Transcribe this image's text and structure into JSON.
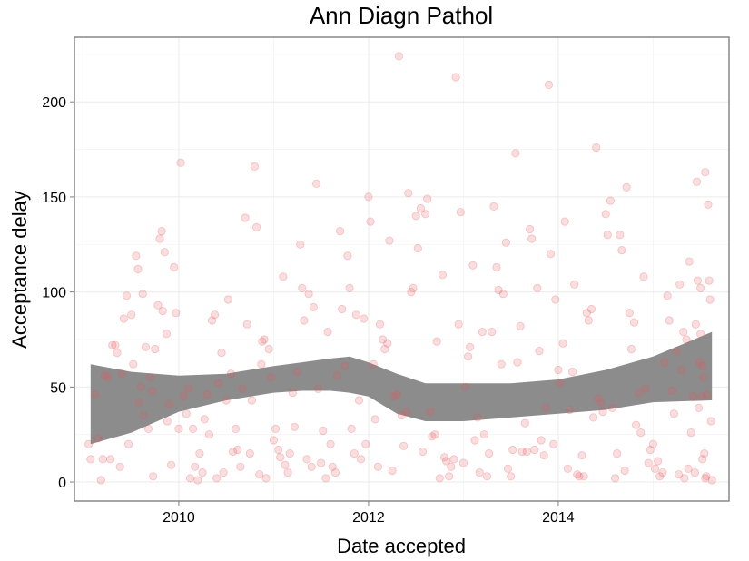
{
  "chart_data": {
    "type": "scatter",
    "title": "Ann Diagn Pathol",
    "xlabel": "Date accepted",
    "ylabel": "Acceptance delay",
    "x_tick_labels": [
      "2010",
      "2012",
      "2014"
    ],
    "y_tick_labels": [
      "0",
      "50",
      "100",
      "150",
      "200"
    ],
    "xlim": [
      2008.9,
      2015.8
    ],
    "ylim": [
      -10,
      234
    ],
    "grid": true,
    "point_color": "#e8555a",
    "band_color": "#8c8c8c",
    "panel_border_color": "#7f7f7f",
    "grid_color": "#ebebeb",
    "points": [
      [
        2009.05,
        20
      ],
      [
        2009.07,
        12
      ],
      [
        2009.12,
        46
      ],
      [
        2009.15,
        23
      ],
      [
        2009.18,
        1
      ],
      [
        2009.2,
        12
      ],
      [
        2009.22,
        56
      ],
      [
        2009.25,
        55
      ],
      [
        2009.28,
        12
      ],
      [
        2009.3,
        72
      ],
      [
        2009.33,
        72
      ],
      [
        2009.35,
        68
      ],
      [
        2009.38,
        8
      ],
      [
        2009.4,
        57
      ],
      [
        2009.42,
        86
      ],
      [
        2009.45,
        98
      ],
      [
        2009.47,
        20
      ],
      [
        2009.5,
        88
      ],
      [
        2009.52,
        62
      ],
      [
        2009.55,
        119
      ],
      [
        2009.57,
        112
      ],
      [
        2009.58,
        42
      ],
      [
        2009.6,
        50
      ],
      [
        2009.62,
        99
      ],
      [
        2009.63,
        35
      ],
      [
        2009.65,
        71
      ],
      [
        2009.68,
        28
      ],
      [
        2009.7,
        55
      ],
      [
        2009.72,
        48
      ],
      [
        2009.73,
        3
      ],
      [
        2009.75,
        70
      ],
      [
        2009.78,
        93
      ],
      [
        2009.8,
        128
      ],
      [
        2009.82,
        132
      ],
      [
        2009.83,
        90
      ],
      [
        2009.85,
        121
      ],
      [
        2009.87,
        78
      ],
      [
        2009.88,
        32
      ],
      [
        2009.9,
        41
      ],
      [
        2009.92,
        9
      ],
      [
        2009.95,
        113
      ],
      [
        2009.97,
        89
      ],
      [
        2010.0,
        28
      ],
      [
        2010.02,
        168
      ],
      [
        2010.05,
        45
      ],
      [
        2010.08,
        36
      ],
      [
        2010.1,
        49
      ],
      [
        2010.12,
        2
      ],
      [
        2010.15,
        28
      ],
      [
        2010.17,
        8
      ],
      [
        2010.2,
        1
      ],
      [
        2010.22,
        15
      ],
      [
        2010.25,
        5
      ],
      [
        2010.27,
        33
      ],
      [
        2010.3,
        46
      ],
      [
        2010.32,
        25
      ],
      [
        2010.35,
        85
      ],
      [
        2010.38,
        88
      ],
      [
        2010.4,
        2
      ],
      [
        2010.42,
        52
      ],
      [
        2010.45,
        68
      ],
      [
        2010.47,
        5
      ],
      [
        2010.5,
        43
      ],
      [
        2010.52,
        96
      ],
      [
        2010.55,
        57
      ],
      [
        2010.57,
        16
      ],
      [
        2010.6,
        28
      ],
      [
        2010.62,
        17
      ],
      [
        2010.65,
        8
      ],
      [
        2010.67,
        49
      ],
      [
        2010.7,
        139
      ],
      [
        2010.72,
        83
      ],
      [
        2010.75,
        15
      ],
      [
        2010.77,
        43
      ],
      [
        2010.8,
        166
      ],
      [
        2010.82,
        134
      ],
      [
        2010.85,
        4
      ],
      [
        2010.87,
        62
      ],
      [
        2010.88,
        74
      ],
      [
        2010.9,
        75
      ],
      [
        2010.92,
        2
      ],
      [
        2010.95,
        70
      ],
      [
        2010.97,
        55
      ],
      [
        2011.0,
        22
      ],
      [
        2011.02,
        28
      ],
      [
        2011.05,
        17
      ],
      [
        2011.07,
        13
      ],
      [
        2011.1,
        108
      ],
      [
        2011.12,
        9
      ],
      [
        2011.15,
        5
      ],
      [
        2011.17,
        15
      ],
      [
        2011.2,
        47
      ],
      [
        2011.22,
        29
      ],
      [
        2011.25,
        58
      ],
      [
        2011.28,
        125
      ],
      [
        2011.3,
        102
      ],
      [
        2011.32,
        85
      ],
      [
        2011.35,
        12
      ],
      [
        2011.37,
        99
      ],
      [
        2011.4,
        8
      ],
      [
        2011.42,
        92
      ],
      [
        2011.45,
        157
      ],
      [
        2011.47,
        49
      ],
      [
        2011.5,
        10
      ],
      [
        2011.52,
        27
      ],
      [
        2011.55,
        2
      ],
      [
        2011.57,
        79
      ],
      [
        2011.6,
        20
      ],
      [
        2011.62,
        8
      ],
      [
        2011.65,
        5
      ],
      [
        2011.67,
        56
      ],
      [
        2011.7,
        132
      ],
      [
        2011.72,
        91
      ],
      [
        2011.75,
        61
      ],
      [
        2011.78,
        119
      ],
      [
        2011.8,
        102
      ],
      [
        2011.82,
        28
      ],
      [
        2011.85,
        15
      ],
      [
        2011.87,
        88
      ],
      [
        2011.9,
        43
      ],
      [
        2011.92,
        12
      ],
      [
        2011.95,
        86
      ],
      [
        2011.97,
        20
      ],
      [
        2012.0,
        150
      ],
      [
        2012.02,
        137
      ],
      [
        2012.05,
        62
      ],
      [
        2012.07,
        33
      ],
      [
        2012.1,
        8
      ],
      [
        2012.12,
        83
      ],
      [
        2012.15,
        75
      ],
      [
        2012.17,
        70
      ],
      [
        2012.2,
        73
      ],
      [
        2012.22,
        127
      ],
      [
        2012.25,
        6
      ],
      [
        2012.27,
        45
      ],
      [
        2012.3,
        46
      ],
      [
        2012.32,
        224
      ],
      [
        2012.35,
        35
      ],
      [
        2012.37,
        19
      ],
      [
        2012.4,
        37
      ],
      [
        2012.42,
        152
      ],
      [
        2012.45,
        100
      ],
      [
        2012.47,
        102
      ],
      [
        2012.5,
        140
      ],
      [
        2012.52,
        123
      ],
      [
        2012.55,
        144
      ],
      [
        2012.57,
        16
      ],
      [
        2012.6,
        141
      ],
      [
        2012.62,
        149
      ],
      [
        2012.65,
        37
      ],
      [
        2012.67,
        24
      ],
      [
        2012.7,
        25
      ],
      [
        2012.72,
        74
      ],
      [
        2012.75,
        2
      ],
      [
        2012.78,
        109
      ],
      [
        2012.8,
        13
      ],
      [
        2012.82,
        11
      ],
      [
        2012.85,
        3
      ],
      [
        2012.87,
        8
      ],
      [
        2012.9,
        12
      ],
      [
        2012.92,
        213
      ],
      [
        2012.95,
        83
      ],
      [
        2012.97,
        142
      ],
      [
        2013.0,
        10
      ],
      [
        2013.02,
        50
      ],
      [
        2013.05,
        66
      ],
      [
        2013.07,
        71
      ],
      [
        2013.1,
        114
      ],
      [
        2013.12,
        22
      ],
      [
        2013.15,
        34
      ],
      [
        2013.17,
        5
      ],
      [
        2013.2,
        79
      ],
      [
        2013.22,
        25
      ],
      [
        2013.25,
        3
      ],
      [
        2013.27,
        15
      ],
      [
        2013.3,
        79
      ],
      [
        2013.32,
        145
      ],
      [
        2013.35,
        113
      ],
      [
        2013.37,
        101
      ],
      [
        2013.4,
        62
      ],
      [
        2013.42,
        99
      ],
      [
        2013.45,
        126
      ],
      [
        2013.47,
        7
      ],
      [
        2013.5,
        3
      ],
      [
        2013.52,
        17
      ],
      [
        2013.55,
        173
      ],
      [
        2013.57,
        63
      ],
      [
        2013.6,
        82
      ],
      [
        2013.62,
        16
      ],
      [
        2013.65,
        31
      ],
      [
        2013.67,
        16
      ],
      [
        2013.7,
        133
      ],
      [
        2013.72,
        128
      ],
      [
        2013.75,
        17
      ],
      [
        2013.78,
        102
      ],
      [
        2013.8,
        69
      ],
      [
        2013.82,
        22
      ],
      [
        2013.85,
        14
      ],
      [
        2013.87,
        39
      ],
      [
        2013.9,
        209
      ],
      [
        2013.92,
        120
      ],
      [
        2013.95,
        20
      ],
      [
        2013.97,
        96
      ],
      [
        2014.0,
        59
      ],
      [
        2014.02,
        52
      ],
      [
        2014.05,
        73
      ],
      [
        2014.07,
        137
      ],
      [
        2014.1,
        7
      ],
      [
        2014.12,
        38
      ],
      [
        2014.15,
        58
      ],
      [
        2014.17,
        104
      ],
      [
        2014.2,
        4
      ],
      [
        2014.22,
        3
      ],
      [
        2014.25,
        14
      ],
      [
        2014.27,
        3
      ],
      [
        2014.3,
        89
      ],
      [
        2014.32,
        85
      ],
      [
        2014.35,
        91
      ],
      [
        2014.37,
        34
      ],
      [
        2014.4,
        176
      ],
      [
        2014.42,
        44
      ],
      [
        2014.45,
        42
      ],
      [
        2014.47,
        37
      ],
      [
        2014.5,
        141
      ],
      [
        2014.52,
        130
      ],
      [
        2014.55,
        148
      ],
      [
        2014.57,
        39
      ],
      [
        2014.6,
        2
      ],
      [
        2014.62,
        15
      ],
      [
        2014.65,
        130
      ],
      [
        2014.67,
        122
      ],
      [
        2014.7,
        6
      ],
      [
        2014.72,
        155
      ],
      [
        2014.75,
        89
      ],
      [
        2014.77,
        70
      ],
      [
        2014.8,
        84
      ],
      [
        2014.82,
        30
      ],
      [
        2014.85,
        47
      ],
      [
        2014.87,
        26
      ],
      [
        2014.9,
        108
      ],
      [
        2014.92,
        49
      ],
      [
        2014.95,
        10
      ],
      [
        2014.97,
        17
      ],
      [
        2015.0,
        20
      ],
      [
        2015.02,
        7
      ],
      [
        2015.05,
        11
      ],
      [
        2015.07,
        3
      ],
      [
        2015.1,
        5
      ],
      [
        2015.12,
        63
      ],
      [
        2015.15,
        98
      ],
      [
        2015.17,
        85
      ],
      [
        2015.2,
        48
      ],
      [
        2015.22,
        36
      ],
      [
        2015.25,
        69
      ],
      [
        2015.27,
        4
      ],
      [
        2015.28,
        104
      ],
      [
        2015.3,
        59
      ],
      [
        2015.32,
        79
      ],
      [
        2015.33,
        2
      ],
      [
        2015.35,
        75
      ],
      [
        2015.37,
        7
      ],
      [
        2015.38,
        116
      ],
      [
        2015.4,
        26
      ],
      [
        2015.42,
        45
      ],
      [
        2015.44,
        5
      ],
      [
        2015.45,
        83
      ],
      [
        2015.46,
        158
      ],
      [
        2015.47,
        106
      ],
      [
        2015.48,
        39
      ],
      [
        2015.49,
        63
      ],
      [
        2015.5,
        78
      ],
      [
        2015.5,
        102
      ],
      [
        2015.51,
        45
      ],
      [
        2015.52,
        12
      ],
      [
        2015.52,
        61
      ],
      [
        2015.53,
        55
      ],
      [
        2015.54,
        15
      ],
      [
        2015.55,
        2
      ],
      [
        2015.55,
        163
      ],
      [
        2015.56,
        3
      ],
      [
        2015.57,
        46
      ],
      [
        2015.58,
        146
      ],
      [
        2015.59,
        106
      ],
      [
        2015.6,
        96
      ],
      [
        2015.61,
        32
      ],
      [
        2015.62,
        1
      ]
    ],
    "smooth": {
      "x": [
        2009.07,
        2009.5,
        2010.0,
        2010.5,
        2011.0,
        2011.3,
        2011.6,
        2011.8,
        2012.0,
        2012.3,
        2012.6,
        2013.0,
        2013.5,
        2014.0,
        2014.5,
        2015.0,
        2015.62
      ],
      "upper": [
        62,
        58,
        56,
        57,
        61,
        63,
        65,
        66,
        63,
        57,
        52,
        52,
        52,
        54,
        59,
        66,
        79
      ],
      "lower": [
        20,
        26,
        37,
        43,
        47,
        48,
        48,
        47,
        45,
        36,
        32,
        32,
        34,
        36,
        38,
        42,
        43
      ]
    }
  }
}
